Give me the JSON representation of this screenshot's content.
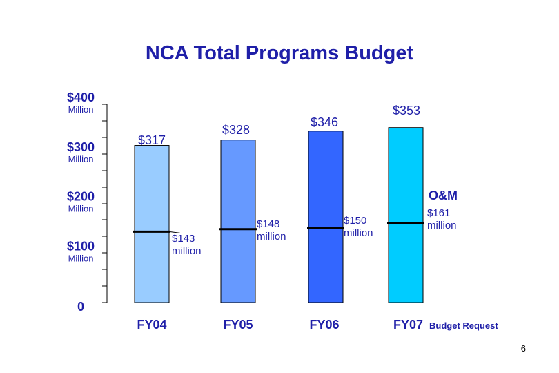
{
  "page_number": "6",
  "chart_data": {
    "type": "bar",
    "title": "NCA Total Programs Budget",
    "categories": [
      "FY04",
      "FY05",
      "FY06",
      "FY07"
    ],
    "category_suffix": [
      "",
      "",
      "",
      "Budget Request"
    ],
    "values": [
      317,
      328,
      346,
      353
    ],
    "total_labels": [
      "$317",
      "$328",
      "$346",
      "$353"
    ],
    "om_values": [
      143,
      148,
      150,
      161
    ],
    "om_labels": [
      [
        "$143",
        "million"
      ],
      [
        "$148",
        "million"
      ],
      [
        "$150",
        "million"
      ],
      [
        "$161",
        "million"
      ]
    ],
    "om_heading": "O&M",
    "bar_colors": [
      "#99ccff",
      "#6699ff",
      "#3366ff",
      "#00ccff"
    ],
    "ylim": [
      0,
      400
    ],
    "yticks": [
      {
        "value": 0,
        "main": "0",
        "sub": ""
      },
      {
        "value": 100,
        "main": "$100",
        "sub": "Million"
      },
      {
        "value": 200,
        "main": "$200",
        "sub": "Million"
      },
      {
        "value": 300,
        "main": "$300",
        "sub": "Million"
      },
      {
        "value": 400,
        "main": "$400",
        "sub": "Million"
      }
    ],
    "minor_tick_step": 33.3333,
    "xlabel": "",
    "ylabel": "",
    "grid": false,
    "text_color": "#1f1fa8"
  }
}
